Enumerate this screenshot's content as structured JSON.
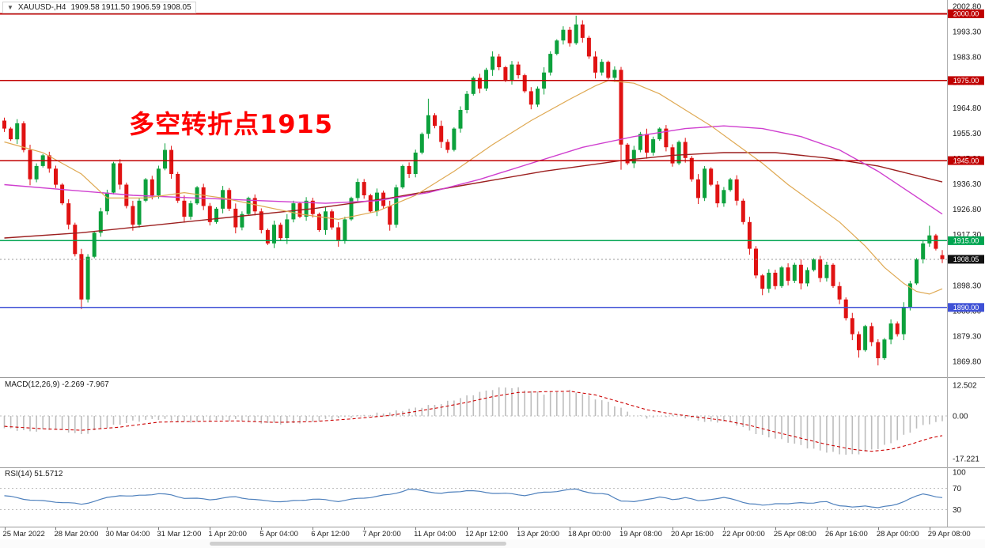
{
  "window": {
    "dropdown_icon": "▼",
    "symbol_tf": "XAUUSD-,H4",
    "ohlc": "1909.58 1911.50 1906.59 1908.05"
  },
  "annotation": {
    "text": "多空转折点1915",
    "color": "#fe0000"
  },
  "chart_data": {
    "type": "candlestick",
    "symbol": "XAUUSD-",
    "timeframe": "H4",
    "title": "XAUUSD-,H4 1909.58 1911.50 1906.59 1908.05",
    "current_candle": {
      "open": 1909.58,
      "high": 1911.5,
      "low": 1906.59,
      "close": 1908.05
    },
    "colors": {
      "up": "#0ca13c",
      "down": "#e01212",
      "background": "#ffffff"
    },
    "y_axis": {
      "labels": [
        "2002.80",
        "1993.30",
        "1983.80",
        "1974.30",
        "1964.80",
        "1955.30",
        "1945.80",
        "1936.30",
        "1926.80",
        "1917.30",
        "1907.80",
        "1898.30",
        "1888.80",
        "1879.30",
        "1869.80"
      ]
    },
    "x_labels": [
      {
        "i": 0,
        "t": "25 Mar 2022"
      },
      {
        "i": 8,
        "t": "28 Mar 20:00"
      },
      {
        "i": 16,
        "t": "30 Mar 04:00"
      },
      {
        "i": 24,
        "t": "31 Mar 12:00"
      },
      {
        "i": 32,
        "t": "1 Apr 20:00"
      },
      {
        "i": 40,
        "t": "5 Apr 04:00"
      },
      {
        "i": 48,
        "t": "6 Apr 12:00"
      },
      {
        "i": 56,
        "t": "7 Apr 20:00"
      },
      {
        "i": 64,
        "t": "11 Apr 04:00"
      },
      {
        "i": 72,
        "t": "12 Apr 12:00"
      },
      {
        "i": 80,
        "t": "13 Apr 20:00"
      },
      {
        "i": 88,
        "t": "18 Apr 00:00"
      },
      {
        "i": 96,
        "t": "19 Apr 08:00"
      },
      {
        "i": 104,
        "t": "20 Apr 16:00"
      },
      {
        "i": 112,
        "t": "22 Apr 00:00"
      },
      {
        "i": 120,
        "t": "25 Apr 08:00"
      },
      {
        "i": 128,
        "t": "26 Apr 16:00"
      },
      {
        "i": 136,
        "t": "28 Apr 00:00"
      },
      {
        "i": 144,
        "t": "29 Apr 08:00"
      }
    ],
    "candles": {
      "first_open": 1960,
      "closes": [
        1957,
        1953,
        1959,
        1949,
        1938,
        1943,
        1947,
        1942,
        1936,
        1929,
        1921,
        1910,
        1893,
        1909,
        1918,
        1926,
        1933,
        1944,
        1936,
        1928,
        1921,
        1930,
        1938,
        1932,
        1942,
        1949,
        1940,
        1930,
        1924,
        1929,
        1935,
        1928,
        1922,
        1927,
        1934,
        1927,
        1920,
        1925,
        1931,
        1926,
        1919,
        1914,
        1921,
        1916,
        1923,
        1929,
        1924,
        1930,
        1925,
        1919,
        1926,
        1920,
        1915,
        1923,
        1931,
        1937,
        1932,
        1926,
        1933,
        1928,
        1921,
        1935,
        1943,
        1940,
        1948,
        1955,
        1962,
        1958,
        1952,
        1949,
        1957,
        1964,
        1970,
        1976,
        1972,
        1979,
        1984,
        1980,
        1975,
        1981,
        1977,
        1971,
        1966,
        1972,
        1978,
        1985,
        1990,
        1994,
        1989,
        1996,
        1991,
        1984,
        1978,
        1982,
        1976,
        1979,
        1951,
        1944,
        1949,
        1955,
        1948,
        1953,
        1957,
        1950,
        1944,
        1952,
        1946,
        1938,
        1931,
        1942,
        1936,
        1929,
        1934,
        1938,
        1930,
        1922,
        1912,
        1902,
        1897,
        1903,
        1898,
        1905,
        1900,
        1906,
        1899,
        1904,
        1908,
        1901,
        1906,
        1898,
        1893,
        1886,
        1880,
        1874,
        1883,
        1877,
        1871,
        1878,
        1884,
        1880,
        1890,
        1899,
        1908,
        1914,
        1917,
        1912,
        1908.05
      ],
      "wick_pattern": [
        1.6,
        0.8,
        2.2,
        1.1,
        2.8,
        1.4,
        0.7,
        1.9
      ],
      "overrides": {
        "12": {
          "low": 1889.4
        },
        "25": {
          "high": 1951.5
        },
        "66": {
          "high": 1968.2
        },
        "89": {
          "high": 1999.3
        },
        "90": {
          "high": 1997.6
        },
        "96": {
          "low": 1941.6
        },
        "118": {
          "low": 1894.6
        },
        "133": {
          "low": 1871.2
        },
        "136": {
          "low": 1868.3
        },
        "144": {
          "high": 1920.6
        },
        "146": {
          "open": 1909.58,
          "high": 1911.5,
          "low": 1906.59
        }
      }
    },
    "hlines": [
      {
        "price": 2000.0,
        "label": "2000.00",
        "color": "#c00000"
      },
      {
        "price": 1975.0,
        "label": "1975.00",
        "color": "#c00000"
      },
      {
        "price": 1945.0,
        "label": "1945.00",
        "color": "#c00000"
      },
      {
        "price": 1915.0,
        "label": "1915.00",
        "color": "#00a551"
      },
      {
        "price": 1890.0,
        "label": "1890.00",
        "color": "#3f51d6"
      }
    ],
    "price_line": {
      "price": 1908.05,
      "label": "1908.05",
      "color": "#999999",
      "badge_bg": "#111111"
    },
    "mas": [
      {
        "name": "slow-ma-darkred",
        "color": "#9c1f1f",
        "width": 1.4,
        "points": [
          [
            0,
            1916
          ],
          [
            12,
            1918
          ],
          [
            24,
            1921
          ],
          [
            36,
            1924
          ],
          [
            48,
            1927
          ],
          [
            60,
            1931
          ],
          [
            72,
            1936
          ],
          [
            84,
            1941
          ],
          [
            96,
            1945
          ],
          [
            104,
            1947
          ],
          [
            112,
            1948
          ],
          [
            120,
            1948
          ],
          [
            128,
            1946
          ],
          [
            136,
            1943
          ],
          [
            141,
            1940
          ],
          [
            146,
            1937
          ]
        ]
      },
      {
        "name": "mid-ma-magenta",
        "color": "#cf3fcf",
        "width": 1.4,
        "points": [
          [
            0,
            1936
          ],
          [
            10,
            1934
          ],
          [
            20,
            1932
          ],
          [
            30,
            1931
          ],
          [
            40,
            1930
          ],
          [
            50,
            1929
          ],
          [
            58,
            1930
          ],
          [
            66,
            1933
          ],
          [
            74,
            1938
          ],
          [
            82,
            1944
          ],
          [
            90,
            1950
          ],
          [
            98,
            1954
          ],
          [
            106,
            1957
          ],
          [
            112,
            1958
          ],
          [
            118,
            1957
          ],
          [
            124,
            1954
          ],
          [
            130,
            1949
          ],
          [
            136,
            1941
          ],
          [
            141,
            1933
          ],
          [
            146,
            1925
          ]
        ]
      },
      {
        "name": "fast-ma-orange",
        "color": "#dfa953",
        "width": 1.2,
        "points": [
          [
            0,
            1952
          ],
          [
            6,
            1948
          ],
          [
            12,
            1940
          ],
          [
            16,
            1931
          ],
          [
            22,
            1931
          ],
          [
            28,
            1933
          ],
          [
            34,
            1931
          ],
          [
            40,
            1928
          ],
          [
            46,
            1925
          ],
          [
            52,
            1923
          ],
          [
            58,
            1926
          ],
          [
            64,
            1932
          ],
          [
            70,
            1941
          ],
          [
            76,
            1951
          ],
          [
            82,
            1960
          ],
          [
            88,
            1968
          ],
          [
            92,
            1973
          ],
          [
            94,
            1975
          ],
          [
            98,
            1974
          ],
          [
            102,
            1970
          ],
          [
            106,
            1964
          ],
          [
            110,
            1958
          ],
          [
            114,
            1951
          ],
          [
            118,
            1944
          ],
          [
            122,
            1936
          ],
          [
            126,
            1929
          ],
          [
            130,
            1922
          ],
          [
            134,
            1913
          ],
          [
            137,
            1905
          ],
          [
            140,
            1899
          ],
          [
            142,
            1896
          ],
          [
            144,
            1895
          ],
          [
            146,
            1897
          ]
        ]
      }
    ],
    "macd": {
      "label": "MACD(12,26,9)",
      "values": "-2.269 -7.967",
      "main": -2.269,
      "signal": -7.967,
      "axis": [
        "12.502",
        "0.00",
        "-17.221"
      ],
      "hist_color": "#bdbdbd",
      "signal_color": "#cc0000",
      "hist_anchors": [
        [
          0,
          -5
        ],
        [
          4,
          -6.3
        ],
        [
          8,
          -5.2
        ],
        [
          12,
          -7.6
        ],
        [
          16,
          -4.5
        ],
        [
          20,
          -2.2
        ],
        [
          24,
          -1.2
        ],
        [
          28,
          -2.6
        ],
        [
          32,
          -2.0
        ],
        [
          36,
          -1.6
        ],
        [
          40,
          -2.8
        ],
        [
          44,
          -3.2
        ],
        [
          48,
          -2.2
        ],
        [
          52,
          -1.0
        ],
        [
          56,
          0.4
        ],
        [
          60,
          1.5
        ],
        [
          64,
          3.2
        ],
        [
          68,
          5.0
        ],
        [
          70,
          6.5
        ],
        [
          72,
          8.0
        ],
        [
          74,
          9.5
        ],
        [
          76,
          10.8
        ],
        [
          78,
          11.6
        ],
        [
          80,
          11.2
        ],
        [
          82,
          10.0
        ],
        [
          84,
          9.0
        ],
        [
          86,
          9.6
        ],
        [
          88,
          10.2
        ],
        [
          90,
          9.0
        ],
        [
          92,
          7.0
        ],
        [
          94,
          5.5
        ],
        [
          96,
          3.0
        ],
        [
          98,
          0.5
        ],
        [
          100,
          -0.8
        ],
        [
          102,
          -0.4
        ],
        [
          104,
          0.3
        ],
        [
          106,
          -0.6
        ],
        [
          108,
          -1.8
        ],
        [
          110,
          -2.6
        ],
        [
          112,
          -2.2
        ],
        [
          114,
          -3.5
        ],
        [
          116,
          -6.0
        ],
        [
          118,
          -8.0
        ],
        [
          120,
          -9.0
        ],
        [
          122,
          -10.5
        ],
        [
          124,
          -12.0
        ],
        [
          126,
          -13.5
        ],
        [
          128,
          -14.5
        ],
        [
          130,
          -15.3
        ],
        [
          132,
          -15.8
        ],
        [
          134,
          -14.5
        ],
        [
          136,
          -13.0
        ],
        [
          138,
          -11.0
        ],
        [
          140,
          -8.0
        ],
        [
          142,
          -5.0
        ],
        [
          144,
          -3.0
        ],
        [
          146,
          -2.269
        ]
      ],
      "signal_anchors": [
        [
          0,
          -4.2
        ],
        [
          6,
          -5.2
        ],
        [
          12,
          -5.8
        ],
        [
          18,
          -4.5
        ],
        [
          24,
          -2.5
        ],
        [
          30,
          -2.2
        ],
        [
          36,
          -2.0
        ],
        [
          42,
          -2.6
        ],
        [
          48,
          -2.3
        ],
        [
          54,
          -1.2
        ],
        [
          60,
          0.2
        ],
        [
          64,
          1.8
        ],
        [
          68,
          3.5
        ],
        [
          72,
          5.5
        ],
        [
          76,
          7.8
        ],
        [
          80,
          9.5
        ],
        [
          84,
          9.8
        ],
        [
          88,
          10.0
        ],
        [
          92,
          8.5
        ],
        [
          96,
          5.5
        ],
        [
          100,
          2.5
        ],
        [
          104,
          0.8
        ],
        [
          108,
          -0.5
        ],
        [
          112,
          -1.8
        ],
        [
          116,
          -3.8
        ],
        [
          120,
          -6.5
        ],
        [
          124,
          -9.0
        ],
        [
          128,
          -11.5
        ],
        [
          132,
          -13.5
        ],
        [
          135,
          -14.3
        ],
        [
          138,
          -13.5
        ],
        [
          141,
          -11.5
        ],
        [
          144,
          -9.0
        ],
        [
          146,
          -7.967
        ]
      ]
    },
    "rsi": {
      "label": "RSI(14)",
      "value": "51.5712",
      "axis": [
        "100",
        "70",
        "30"
      ],
      "levels": [
        70,
        30
      ],
      "color": "#4f81bd",
      "anchors": [
        [
          0,
          56
        ],
        [
          3,
          50
        ],
        [
          6,
          46
        ],
        [
          9,
          44
        ],
        [
          12,
          40
        ],
        [
          14,
          46
        ],
        [
          16,
          52
        ],
        [
          18,
          57
        ],
        [
          20,
          55
        ],
        [
          24,
          60
        ],
        [
          26,
          57
        ],
        [
          28,
          52
        ],
        [
          32,
          49
        ],
        [
          36,
          54
        ],
        [
          40,
          47
        ],
        [
          44,
          45
        ],
        [
          48,
          50
        ],
        [
          52,
          46
        ],
        [
          56,
          52
        ],
        [
          60,
          58
        ],
        [
          63,
          68
        ],
        [
          66,
          64
        ],
        [
          68,
          60
        ],
        [
          70,
          63
        ],
        [
          72,
          66
        ],
        [
          75,
          62
        ],
        [
          78,
          60
        ],
        [
          81,
          57
        ],
        [
          84,
          62
        ],
        [
          87,
          66
        ],
        [
          89,
          68
        ],
        [
          92,
          60
        ],
        [
          94,
          58
        ],
        [
          96,
          47
        ],
        [
          98,
          44
        ],
        [
          100,
          50
        ],
        [
          102,
          53
        ],
        [
          104,
          49
        ],
        [
          106,
          53
        ],
        [
          108,
          46
        ],
        [
          110,
          50
        ],
        [
          112,
          52
        ],
        [
          114,
          48
        ],
        [
          116,
          41
        ],
        [
          118,
          38
        ],
        [
          120,
          42
        ],
        [
          122,
          40
        ],
        [
          124,
          44
        ],
        [
          126,
          42
        ],
        [
          128,
          45
        ],
        [
          130,
          38
        ],
        [
          132,
          34
        ],
        [
          134,
          38
        ],
        [
          136,
          33
        ],
        [
          138,
          38
        ],
        [
          140,
          45
        ],
        [
          141,
          50
        ],
        [
          142,
          55
        ],
        [
          143,
          60
        ],
        [
          144,
          58
        ],
        [
          145,
          54
        ],
        [
          146,
          51.5712
        ]
      ]
    }
  }
}
